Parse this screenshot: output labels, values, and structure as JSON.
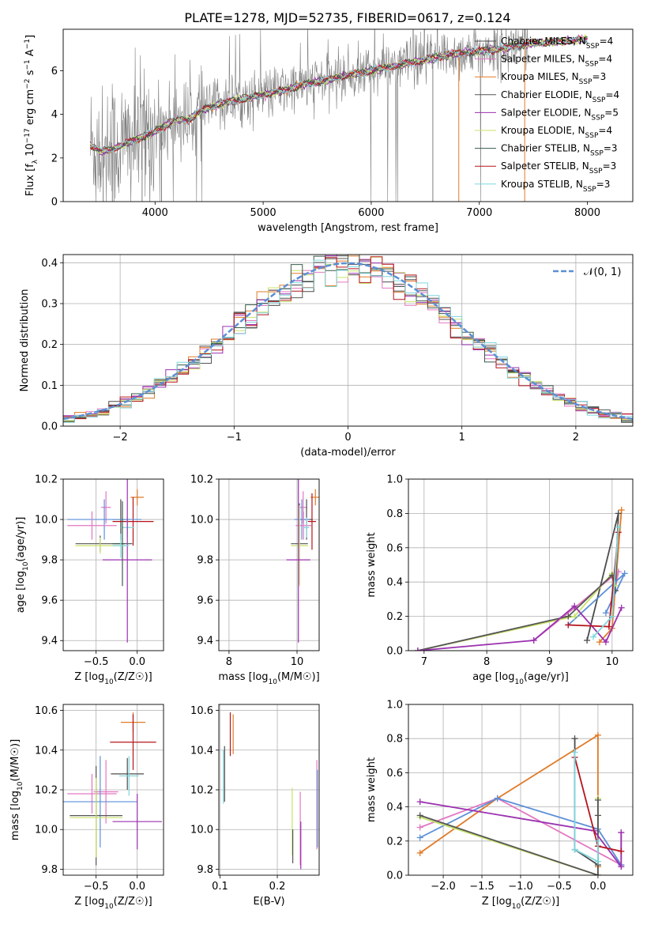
{
  "figure_title": "PLATE=1278, MJD=52735, FIBERID=0617, z=0.124",
  "colors": {
    "chabrier_miles": "#4c4c4c",
    "salpeter_miles": "#e377c2",
    "kroupa_miles": "#e07b28",
    "chabrier_elodie": "#555555",
    "salpeter_elodie": "#9b30b0",
    "kroupa_elodie": "#c8e36a",
    "chabrier_stelib": "#3a5a4a",
    "salpeter_stelib": "#b5141c",
    "kroupa_stelib": "#7fd6dd",
    "spectrum": "#808080",
    "gaussian": "#5b8fd6",
    "blue_model": "#5b8fd6",
    "grid": "#b0b0b0"
  },
  "chart_data": [
    {
      "id": "spectrum",
      "type": "line",
      "xlabel": "wavelength [Angstrom, rest frame]",
      "ylabel": "Flux [f_λ 10^-17 erg cm^-2 s^-1 A^-1]",
      "xlim": [
        3150,
        8420
      ],
      "ylim": [
        0,
        7.9
      ],
      "xticks": [
        "4000",
        "5000",
        "6000",
        "7000",
        "8000"
      ],
      "yticks": [
        "0",
        "2",
        "4",
        "6"
      ],
      "grid": false,
      "legend_position": "top-right",
      "legend": [
        "Chabrier MILES, N_SSP=4",
        "Salpeter MILES, N_SSP=4",
        "Kroupa MILES, N_SSP=3",
        "Chabrier ELODIE, N_SSP=4",
        "Salpeter ELODIE, N_SSP=5",
        "Kroupa ELODIE, N_SSP=4",
        "Chabrier STELIB, N_SSP=3",
        "Salpeter STELIB, N_SSP=3",
        "Kroupa STELIB, N_SSP=3"
      ],
      "continuum_x": [
        3400,
        3500,
        3600,
        3700,
        3800,
        3900,
        4000,
        4100,
        4200,
        4300,
        4400,
        4500,
        4600,
        4700,
        4800,
        4900,
        5000,
        5200,
        5400,
        5600,
        5800,
        6000,
        6200,
        6400,
        6600,
        6800,
        7000,
        7200,
        7400
      ],
      "continuum_y": [
        2.6,
        2.3,
        2.4,
        2.6,
        2.8,
        3.0,
        3.2,
        3.5,
        3.8,
        3.7,
        4.1,
        4.3,
        4.5,
        4.6,
        4.7,
        4.8,
        4.9,
        5.1,
        5.4,
        5.6,
        5.8,
        6.0,
        6.2,
        6.4,
        6.6,
        6.8,
        6.9,
        7.0,
        7.2
      ]
    },
    {
      "id": "residuals",
      "type": "histogram",
      "xlabel": "(data-model)/error",
      "ylabel": "Normed distribution",
      "xlim": [
        -2.5,
        2.5
      ],
      "ylim": [
        0,
        0.42
      ],
      "xticks": [
        "−2",
        "−1",
        "0",
        "1",
        "2"
      ],
      "yticks": [
        "0.0",
        "0.1",
        "0.2",
        "0.3",
        "0.4"
      ],
      "grid": true,
      "legend_position": "top-right",
      "legend": [
        "𝒩(0, 1)"
      ],
      "bin_width": 0.1
    },
    {
      "id": "age_vs_Z",
      "type": "scatter",
      "xlabel": "Z [log10(Z/Z☉)]",
      "ylabel": "age [log10(age/yr)]",
      "xlim": [
        -0.9,
        0.32
      ],
      "ylim": [
        9.35,
        10.2
      ],
      "xticks": [
        "−0.5",
        "0.0"
      ],
      "xtick_values": [
        -0.5,
        0.0
      ],
      "yticks": [
        "9.4",
        "9.6",
        "9.8",
        "10.0",
        "10.2"
      ],
      "ytick_values": [
        9.4,
        9.6,
        9.8,
        10.0,
        10.2
      ],
      "grid": true,
      "points": [
        {
          "c": "kroupa_miles",
          "x": 0.0,
          "y": 10.11,
          "xe": 0.08,
          "ye": 0.04
        },
        {
          "c": "salpeter_miles",
          "x": -0.38,
          "y": 10.06,
          "xe": 0.06,
          "ye": 0.08
        },
        {
          "c": "chabrier_miles",
          "x": -0.2,
          "y": 10.0,
          "xe": 0.1,
          "ye": 0.1
        },
        {
          "c": "salpeter_stelib",
          "x": -0.05,
          "y": 9.99,
          "xe": 0.25,
          "ye": 0.12
        },
        {
          "c": "blue_model",
          "x": -0.4,
          "y": 10.0,
          "xe": 0.45,
          "ye": 0.1
        },
        {
          "c": "salpeter_miles",
          "x": -0.55,
          "y": 9.97,
          "xe": 0.3,
          "ye": 0.07
        },
        {
          "c": "kroupa_stelib",
          "x": -0.12,
          "y": 9.96,
          "xe": 0.08,
          "ye": 0.05
        },
        {
          "c": "chabrier_elodie",
          "x": -0.45,
          "y": 9.88,
          "xe": 0.3,
          "ye": 0.04
        },
        {
          "c": "kroupa_elodie",
          "x": -0.45,
          "y": 9.87,
          "xe": 0.3,
          "ye": 0.04
        },
        {
          "c": "chabrier_stelib",
          "x": -0.18,
          "y": 9.88,
          "xe": 0.12,
          "ye": 0.21
        },
        {
          "c": "salpeter_elodie",
          "x": -0.12,
          "y": 9.8,
          "xe": 0.3,
          "ye": 0.41
        },
        {
          "c": "kroupa_stelib",
          "x": -0.2,
          "y": 9.87,
          "xe": 0.1,
          "ye": 0.06
        }
      ]
    },
    {
      "id": "age_vs_mass",
      "type": "scatter",
      "xlabel": "mass [log10(M/M☉)]",
      "xlim": [
        7.7,
        10.65
      ],
      "ylim": [
        9.35,
        10.2
      ],
      "xticks": [
        "8",
        "10"
      ],
      "xtick_values": [
        8,
        10
      ],
      "yticks": [
        "9.4",
        "9.6",
        "9.8",
        "10.0",
        "10.2"
      ],
      "ytick_values": [
        9.4,
        9.6,
        9.8,
        10.0,
        10.2
      ],
      "grid": true,
      "points": [
        {
          "c": "kroupa_miles",
          "x": 10.54,
          "y": 10.11,
          "xe": 0.14,
          "ye": 0.04
        },
        {
          "c": "salpeter_miles",
          "x": 10.18,
          "y": 10.06,
          "xe": 0.1,
          "ye": 0.08
        },
        {
          "c": "chabrier_miles",
          "x": 10.28,
          "y": 10.0,
          "xe": 0.18,
          "ye": 0.1
        },
        {
          "c": "salpeter_stelib",
          "x": 10.44,
          "y": 9.99,
          "xe": 0.12,
          "ye": 0.14
        },
        {
          "c": "blue_model",
          "x": 10.14,
          "y": 10.0,
          "xe": 0.22,
          "ye": 0.1
        },
        {
          "c": "salpeter_miles",
          "x": 10.19,
          "y": 9.97,
          "xe": 0.23,
          "ye": 0.07
        },
        {
          "c": "kroupa_stelib",
          "x": 10.28,
          "y": 9.96,
          "xe": 0.08,
          "ye": 0.05
        },
        {
          "c": "chabrier_elodie",
          "x": 10.07,
          "y": 9.88,
          "xe": 0.25,
          "ye": 0.2
        },
        {
          "c": "kroupa_elodie",
          "x": 10.07,
          "y": 9.87,
          "xe": 0.25,
          "ye": 0.2
        },
        {
          "c": "salpeter_elodie",
          "x": 10.04,
          "y": 9.8,
          "xe": 0.35,
          "ye": 0.41
        }
      ]
    },
    {
      "id": "mass_weight_vs_age",
      "type": "line",
      "xlabel": "age [log10(age/yr)]",
      "ylabel": "mass weight",
      "xlim": [
        6.75,
        10.33
      ],
      "ylim": [
        0.0,
        1.0
      ],
      "xticks": [
        "7",
        "8",
        "9",
        "10"
      ],
      "xtick_values": [
        7,
        8,
        9,
        10
      ],
      "yticks": [
        "0.0",
        "0.2",
        "0.4",
        "0.6",
        "0.8",
        "1.0"
      ],
      "ytick_values": [
        0,
        0.2,
        0.4,
        0.6,
        0.8,
        1.0
      ],
      "grid": true,
      "series": [
        {
          "c": "kroupa_miles",
          "x": [
            9.8,
            10.0,
            10.15
          ],
          "y": [
            0.05,
            0.13,
            0.82
          ]
        },
        {
          "c": "salpeter_miles",
          "x": [
            8.75,
            9.4,
            10.1,
            10.0
          ],
          "y": [
            0.06,
            0.25,
            0.46,
            0.27
          ]
        },
        {
          "c": "chabrier_miles",
          "x": [
            9.6,
            10.1,
            10.05
          ],
          "y": [
            0.06,
            0.8,
            0.35
          ]
        },
        {
          "c": "blue_model",
          "x": [
            9.3,
            10.2,
            9.9
          ],
          "y": [
            0.15,
            0.45,
            0.22
          ]
        },
        {
          "c": "kroupa_elodie",
          "x": [
            6.9,
            9.4,
            10.0,
            10.05
          ],
          "y": [
            0.0,
            0.2,
            0.45,
            0.38
          ]
        },
        {
          "c": "chabrier_elodie",
          "x": [
            6.9,
            9.3,
            10.0,
            10.05
          ],
          "y": [
            0.0,
            0.2,
            0.44,
            0.35
          ]
        },
        {
          "c": "salpeter_elodie",
          "x": [
            6.9,
            8.75,
            9.4,
            9.9,
            10.15
          ],
          "y": [
            0.0,
            0.06,
            0.26,
            0.05,
            0.25
          ]
        },
        {
          "c": "salpeter_stelib",
          "x": [
            9.3,
            9.95,
            10.1
          ],
          "y": [
            0.15,
            0.14,
            0.69
          ]
        },
        {
          "c": "kroupa_stelib",
          "x": [
            9.7,
            10.0,
            10.1
          ],
          "y": [
            0.08,
            0.2,
            0.72
          ]
        }
      ]
    },
    {
      "id": "mass_vs_Z",
      "type": "scatter",
      "xlabel": "Z [log10(Z/Z☉)]",
      "ylabel": "mass [log10(M/M☉)]",
      "xlim": [
        -0.9,
        0.32
      ],
      "ylim": [
        9.77,
        10.63
      ],
      "xticks": [
        "−0.5",
        "0.0"
      ],
      "xtick_values": [
        -0.5,
        0.0
      ],
      "yticks": [
        "9.8",
        "10.0",
        "10.2",
        "10.4",
        "10.6"
      ],
      "ytick_values": [
        9.8,
        10.0,
        10.2,
        10.4,
        10.6
      ],
      "grid": true,
      "points": [
        {
          "c": "kroupa_miles",
          "x": -0.05,
          "y": 10.54,
          "xe": 0.15,
          "ye": 0.05
        },
        {
          "c": "salpeter_stelib",
          "x": -0.05,
          "y": 10.44,
          "xe": 0.28,
          "ye": 0.14
        },
        {
          "c": "chabrier_miles",
          "x": -0.12,
          "y": 10.28,
          "xe": 0.2,
          "ye": 0.08
        },
        {
          "c": "kroupa_stelib",
          "x": -0.1,
          "y": 10.27,
          "xe": 0.12,
          "ye": 0.1
        },
        {
          "c": "salpeter_miles",
          "x": -0.38,
          "y": 10.19,
          "xe": 0.15,
          "ye": 0.16
        },
        {
          "c": "salpeter_miles",
          "x": -0.55,
          "y": 10.18,
          "xe": 0.3,
          "ye": 0.1
        },
        {
          "c": "blue_model",
          "x": -0.45,
          "y": 10.14,
          "xe": 0.45,
          "ye": 0.23
        },
        {
          "c": "chabrier_elodie",
          "x": -0.5,
          "y": 10.07,
          "xe": 0.32,
          "ye": 0.25
        },
        {
          "c": "kroupa_elodie",
          "x": -0.5,
          "y": 10.06,
          "xe": 0.32,
          "ye": 0.2
        },
        {
          "c": "salpeter_elodie",
          "x": 0.0,
          "y": 10.04,
          "xe": 0.3,
          "ye": 0.14
        }
      ]
    },
    {
      "id": "mass_vs_ebv",
      "type": "scatter",
      "xlabel": "E(B-V)",
      "xlim": [
        0.098,
        0.273
      ],
      "ylim": [
        9.77,
        10.63
      ],
      "xticks": [
        "0.1",
        "0.2"
      ],
      "xtick_values": [
        0.1,
        0.2
      ],
      "yticks": [
        "9.8",
        "10.0",
        "10.2",
        "10.4",
        "10.6"
      ],
      "ytick_values": [
        9.8,
        10.0,
        10.2,
        10.4,
        10.6
      ],
      "grid": true,
      "bars": [
        {
          "c": "kroupa_miles",
          "x": 0.123,
          "y0": 10.38,
          "y1": 10.58
        },
        {
          "c": "salpeter_stelib",
          "x": 0.118,
          "y0": 10.37,
          "y1": 10.59
        },
        {
          "c": "chabrier_miles",
          "x": 0.108,
          "y0": 10.14,
          "y1": 10.42
        },
        {
          "c": "kroupa_stelib",
          "x": 0.106,
          "y0": 10.13,
          "y1": 10.4
        },
        {
          "c": "kroupa_elodie",
          "x": 0.226,
          "y0": 9.87,
          "y1": 10.21
        },
        {
          "c": "chabrier_elodie",
          "x": 0.227,
          "y0": 9.83,
          "y1": 10.0
        },
        {
          "c": "salpeter_miles",
          "x": 0.24,
          "y0": 9.82,
          "y1": 10.19
        },
        {
          "c": "salpeter_elodie",
          "x": 0.241,
          "y0": 9.8,
          "y1": 10.04
        },
        {
          "c": "salpeter_miles",
          "x": 0.269,
          "y0": 9.9,
          "y1": 10.35
        },
        {
          "c": "blue_model",
          "x": 0.27,
          "y0": 9.91,
          "y1": 10.3
        }
      ]
    },
    {
      "id": "mass_weight_vs_Z",
      "type": "line",
      "xlabel": "Z [log10(Z/Z☉)]",
      "ylabel": "mass weight",
      "xlim": [
        -2.45,
        0.45
      ],
      "ylim": [
        0.0,
        1.0
      ],
      "xticks": [
        "−2.0",
        "−1.5",
        "−1.0",
        "−0.5",
        "0.0"
      ],
      "xtick_values": [
        -2.0,
        -1.5,
        -1.0,
        -0.5,
        0.0
      ],
      "yticks": [
        "0.0",
        "0.2",
        "0.4",
        "0.6",
        "0.8",
        "1.0"
      ],
      "ytick_values": [
        0,
        0.2,
        0.4,
        0.6,
        0.8,
        1.0
      ],
      "grid": true,
      "series": [
        {
          "c": "kroupa_miles",
          "x": [
            -2.3,
            -1.3,
            0.0,
            0.0
          ],
          "y": [
            0.13,
            0.45,
            0.82,
            0.05
          ]
        },
        {
          "c": "salpeter_miles",
          "x": [
            -2.3,
            -1.3,
            0.3,
            0.3
          ],
          "y": [
            0.28,
            0.45,
            0.06,
            0.25
          ]
        },
        {
          "c": "chabrier_miles",
          "x": [
            -0.3,
            -0.3,
            0.0,
            0.0
          ],
          "y": [
            0.8,
            0.15,
            0.06,
            0.35
          ]
        },
        {
          "c": "blue_model",
          "x": [
            -2.3,
            -1.3,
            0.0,
            0.3
          ],
          "y": [
            0.22,
            0.45,
            0.27,
            0.06
          ]
        },
        {
          "c": "kroupa_elodie",
          "x": [
            -2.3,
            0.0,
            0.0
          ],
          "y": [
            0.34,
            0.0,
            0.45
          ]
        },
        {
          "c": "chabrier_elodie",
          "x": [
            -2.3,
            0.0,
            0.0
          ],
          "y": [
            0.35,
            0.0,
            0.44
          ]
        },
        {
          "c": "salpeter_elodie",
          "x": [
            -2.3,
            -0.05,
            0.3,
            0.3
          ],
          "y": [
            0.43,
            0.26,
            0.05,
            0.25
          ]
        },
        {
          "c": "salpeter_stelib",
          "x": [
            -0.3,
            0.0,
            0.3
          ],
          "y": [
            0.69,
            0.17,
            0.14
          ]
        },
        {
          "c": "kroupa_stelib",
          "x": [
            -0.3,
            -0.3,
            0.0,
            0.0
          ],
          "y": [
            0.72,
            0.15,
            0.08,
            0.2
          ]
        }
      ]
    }
  ]
}
